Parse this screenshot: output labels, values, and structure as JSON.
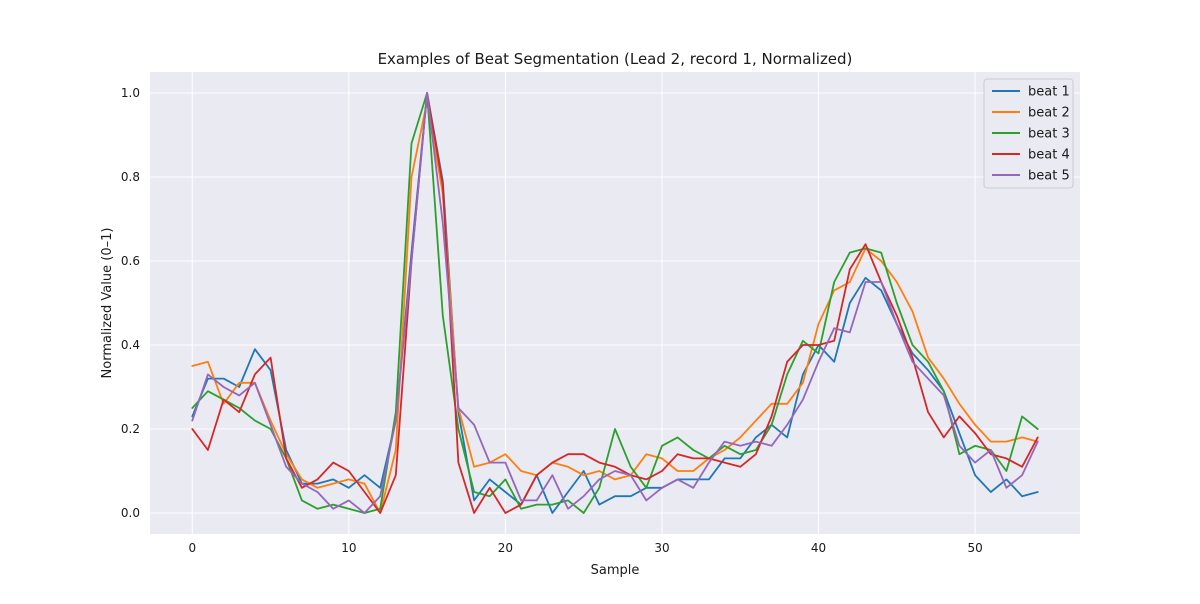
{
  "chart_data": {
    "type": "line",
    "title": "Examples of Beat Segmentation (Lead 2, record 1, Normalized)",
    "xlabel": "Sample",
    "ylabel": "Normalized Value (0–1)",
    "xlim": [
      -2.7,
      56.7
    ],
    "ylim": [
      -0.05,
      1.05
    ],
    "xticks": [
      0,
      10,
      20,
      30,
      40,
      50
    ],
    "yticks": [
      0.0,
      0.2,
      0.4,
      0.6,
      0.8,
      1.0
    ],
    "ytick_labels": [
      "0.0",
      "0.2",
      "0.4",
      "0.6",
      "0.8",
      "1.0"
    ],
    "grid": true,
    "legend_position": "top-right",
    "x": [
      0,
      1,
      2,
      3,
      4,
      5,
      6,
      7,
      8,
      9,
      10,
      11,
      12,
      13,
      14,
      15,
      16,
      17,
      18,
      19,
      20,
      21,
      22,
      23,
      24,
      25,
      26,
      27,
      28,
      29,
      30,
      31,
      32,
      33,
      34,
      35,
      36,
      37,
      38,
      39,
      40,
      41,
      42,
      43,
      44,
      45,
      46,
      47,
      48,
      49,
      50,
      51,
      52,
      53,
      54
    ],
    "series": [
      {
        "name": "beat 1",
        "color": "#1f77b4",
        "values": [
          0.23,
          0.32,
          0.32,
          0.3,
          0.39,
          0.34,
          0.15,
          0.07,
          0.07,
          0.08,
          0.06,
          0.09,
          0.06,
          0.22,
          0.62,
          1.0,
          0.79,
          0.24,
          0.03,
          0.08,
          0.05,
          0.02,
          0.09,
          0.0,
          0.05,
          0.1,
          0.02,
          0.04,
          0.04,
          0.06,
          0.06,
          0.08,
          0.08,
          0.08,
          0.13,
          0.13,
          0.18,
          0.21,
          0.18,
          0.33,
          0.4,
          0.36,
          0.5,
          0.56,
          0.53,
          0.45,
          0.38,
          0.34,
          0.29,
          0.19,
          0.09,
          0.05,
          0.08,
          0.04,
          0.05
        ]
      },
      {
        "name": "beat 2",
        "color": "#ff7f0e",
        "values": [
          0.35,
          0.36,
          0.26,
          0.31,
          0.31,
          0.22,
          0.14,
          0.08,
          0.06,
          0.07,
          0.08,
          0.07,
          0.0,
          0.15,
          0.8,
          0.98,
          0.76,
          0.25,
          0.11,
          0.12,
          0.14,
          0.1,
          0.09,
          0.12,
          0.11,
          0.09,
          0.1,
          0.08,
          0.09,
          0.14,
          0.13,
          0.1,
          0.1,
          0.13,
          0.15,
          0.18,
          0.22,
          0.26,
          0.26,
          0.31,
          0.45,
          0.53,
          0.55,
          0.63,
          0.6,
          0.55,
          0.48,
          0.37,
          0.32,
          0.26,
          0.21,
          0.17,
          0.17,
          0.18,
          0.17
        ]
      },
      {
        "name": "beat 3",
        "color": "#2ca02c",
        "values": [
          0.25,
          0.29,
          0.27,
          0.25,
          0.22,
          0.2,
          0.13,
          0.03,
          0.01,
          0.02,
          0.01,
          0.0,
          0.01,
          0.24,
          0.88,
          1.0,
          0.47,
          0.2,
          0.05,
          0.04,
          0.08,
          0.01,
          0.02,
          0.02,
          0.03,
          0.0,
          0.06,
          0.2,
          0.11,
          0.06,
          0.16,
          0.18,
          0.15,
          0.13,
          0.16,
          0.14,
          0.15,
          0.21,
          0.33,
          0.41,
          0.38,
          0.55,
          0.62,
          0.63,
          0.62,
          0.5,
          0.4,
          0.36,
          0.29,
          0.14,
          0.16,
          0.15,
          0.1,
          0.23,
          0.2
        ]
      },
      {
        "name": "beat 4",
        "color": "#d62728",
        "values": [
          0.2,
          0.15,
          0.27,
          0.24,
          0.33,
          0.37,
          0.13,
          0.06,
          0.08,
          0.12,
          0.1,
          0.05,
          0.0,
          0.09,
          0.6,
          1.0,
          0.78,
          0.12,
          0.0,
          0.06,
          0.0,
          0.02,
          0.09,
          0.12,
          0.14,
          0.14,
          0.12,
          0.11,
          0.09,
          0.08,
          0.1,
          0.14,
          0.13,
          0.13,
          0.12,
          0.11,
          0.14,
          0.23,
          0.36,
          0.4,
          0.4,
          0.41,
          0.58,
          0.64,
          0.55,
          0.47,
          0.37,
          0.24,
          0.18,
          0.23,
          0.19,
          0.14,
          0.13,
          0.11,
          0.18
        ]
      },
      {
        "name": "beat 5",
        "color": "#9467bd",
        "values": [
          0.22,
          0.33,
          0.3,
          0.28,
          0.31,
          0.21,
          0.11,
          0.07,
          0.05,
          0.01,
          0.03,
          0.0,
          0.04,
          0.22,
          0.6,
          1.0,
          0.69,
          0.25,
          0.21,
          0.12,
          0.12,
          0.03,
          0.03,
          0.09,
          0.01,
          0.04,
          0.08,
          0.1,
          0.09,
          0.03,
          0.06,
          0.08,
          0.06,
          0.12,
          0.17,
          0.16,
          0.17,
          0.16,
          0.21,
          0.27,
          0.36,
          0.44,
          0.43,
          0.55,
          0.55,
          0.45,
          0.36,
          0.32,
          0.28,
          0.16,
          0.12,
          0.15,
          0.06,
          0.09,
          0.17
        ]
      }
    ]
  }
}
